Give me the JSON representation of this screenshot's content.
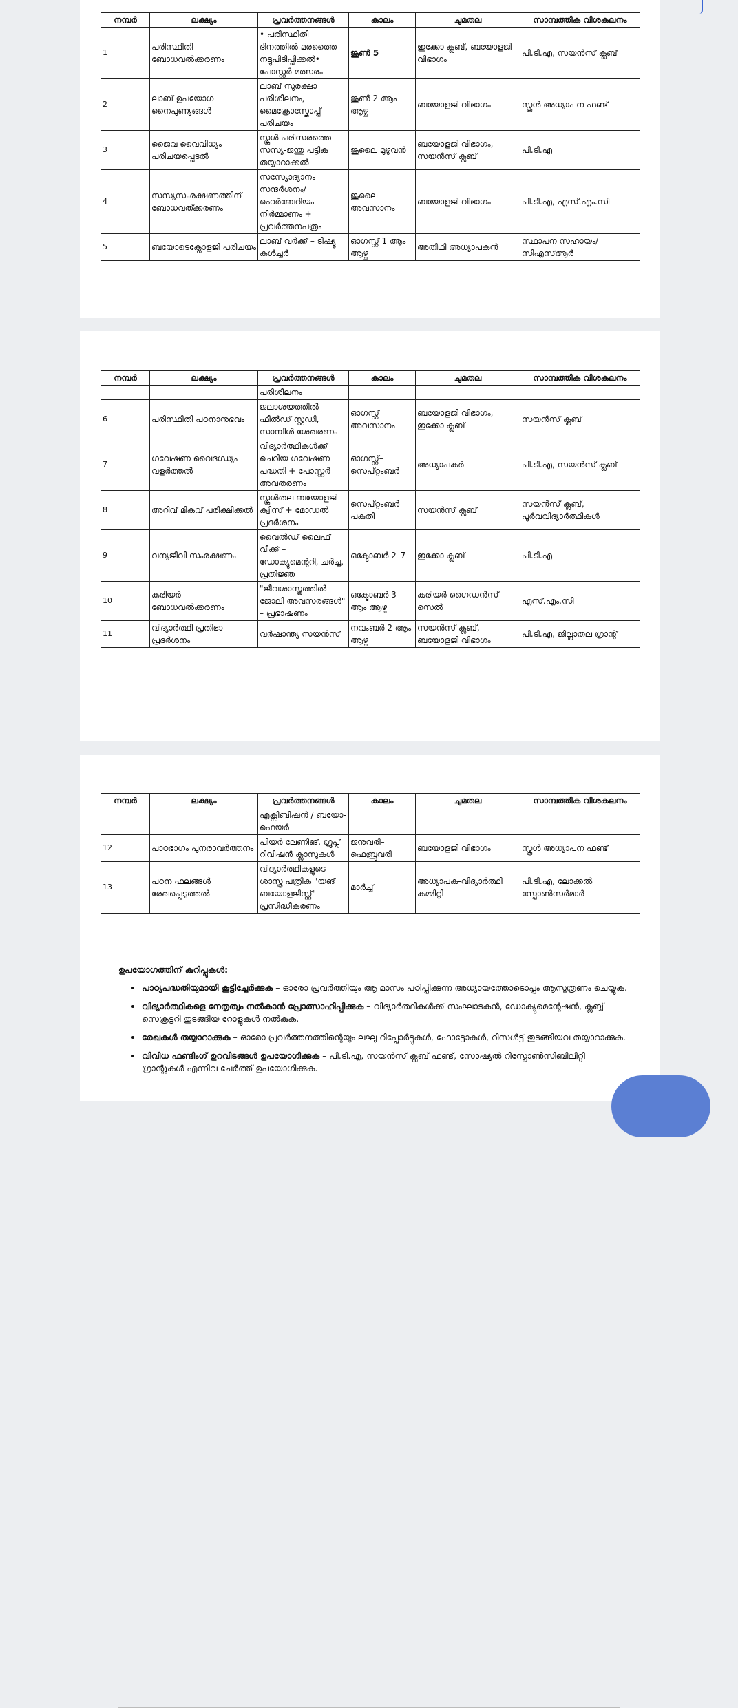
{
  "pages": [
    {
      "table": {
        "header": [
          "നമ്പർ",
          "ലക്ഷ്യം",
          "പ്രവർത്തനങ്ങൾ",
          "കാലം",
          "ചുമതല",
          "സാമ്പത്തിക വിശകലനം"
        ],
        "rows": [
          [
            "1",
            "പരിസ്ഥിതി ബോധവൽക്കരണം",
            "• പരിസ്ഥിതി ദിനത്തിൽ മരത്തൈ നട്ടുപിടിപ്പിക്കൽ• പോസ്റ്റർ മത്സരം",
            "ജൂൺ 5",
            "ഇക്കോ ക്ലബ്, ബയോളജി വിഭാഗം",
            "പി.ടി.എ, സയൻസ് ക്ലബ്"
          ],
          [
            "2",
            "ലാബ് ഉപയോഗ നൈപുണ്യങ്ങൾ",
            "ലാബ് സുരക്ഷാ പരിശീലനം, മൈക്രോസ്കോപ്പ് പരിചയം",
            "ജൂൺ 2 ആം ആഴ്ച",
            "ബയോളജി വിഭാഗം",
            "സ്കൂൾ അധ്യാപന ഫണ്ട്"
          ],
          [
            "3",
            "ജൈവ വൈവിധ്യം പരിചയപ്പെടൽ",
            "സ്കൂൾ പരിസരത്തെ സസ്യ-ജന്തു പട്ടിക തയ്യാറാക്കൽ",
            "ജൂലൈ മുഴുവൻ",
            "ബയോളജി വിഭാഗം, സയൻസ് ക്ലബ്",
            "പി.ടി.എ"
          ],
          [
            "4",
            "സസ്യസംരക്ഷണത്തിന് ബോധവത്ക്കരണം",
            "സസ്യോദ്യാനം സന്ദർശനം/ ഹെർബേറിയം നിർമ്മാണം + പ്രവർത്തനപത്രം",
            "ജൂലൈ അവസാനം",
            "ബയോളജി വിഭാഗം",
            "പി.ടി.എ, എസ്.എം.സി"
          ],
          [
            "5",
            "ബയോടെക്നോളജി പരിചയം",
            "ലാബ് വർക്ക് – ടിഷ്യൂ കൾച്ചർ",
            "ഓഗസ്റ്റ് 1 ആം ആഴ്ച",
            "അതിഥി അധ്യാപകൻ",
            "സ്ഥാപന സഹായം/സിഎസ്ആർ"
          ]
        ]
      }
    },
    {
      "table": {
        "header": [
          "നമ്പർ",
          "ലക്ഷ്യം",
          "പ്രവർത്തനങ്ങൾ",
          "കാലം",
          "ചുമതല",
          "സാമ്പത്തിക വിശകലനം"
        ],
        "rows": [
          [
            null,
            null,
            "പരിശീലനം",
            null,
            null,
            null
          ],
          [
            "6",
            "പരിസ്ഥിതി പഠനാനുഭവം",
            "ജലാശയത്തിൽ ഫീൽഡ് സ്റ്റഡി, സാമ്പിൾ ശേഖരണം",
            "ഓഗസ്റ്റ് അവസാനം",
            "ബയോളജി വിഭാഗം, ഇക്കോ ക്ലബ്",
            "സയൻസ് ക്ലബ്"
          ],
          [
            "7",
            "ഗവേഷണ വൈദഗ്ധ്യം വളർത്തൽ",
            "വിദ്യാർത്ഥികൾക്ക് ചെറിയ ഗവേഷണ പദ്ധതി + പോസ്റ്റർ അവതരണം",
            "ഓഗസ്റ്റ്–സെപ്റ്റംബർ",
            "അധ്യാപകർ",
            "പി.ടി.എ, സയൻസ് ക്ലബ്"
          ],
          [
            "8",
            "അറിവ് മികവ് പരീക്ഷിക്കൽ",
            "സ്കൂൾതല ബയോളജി ക്വിസ് + മോഡൽ പ്രദർശനം",
            "സെപ്റ്റംബർ പകുതി",
            "സയൻസ് ക്ലബ്",
            "സയൻസ് ക്ലബ്, പൂർവവിദ്യാർത്ഥികൾ"
          ],
          [
            "9",
            "വന്യജീവി സംരക്ഷണം",
            "വൈൽഡ് ലൈഫ് വീക്ക് – ഡോക്യുമെന്ററി, ചർച്ച, പ്രതിജ്ഞ",
            "ഒക്ടോബർ 2–7",
            "ഇക്കോ ക്ലബ്",
            "പി.ടി.എ"
          ],
          [
            "10",
            "കരിയർ ബോധവൽക്കരണം",
            "\"ജീവശാസ്ത്രത്തിൽ ജോലി അവസരങ്ങൾ\" – പ്രഭാഷണം",
            "ഒക്ടോബർ 3 ആം ആഴ്ച",
            "കരിയർ ഗൈഡൻസ് സെൽ",
            "എസ്.എം.സി"
          ],
          [
            "11",
            "വിദ്യാർത്ഥി പ്രതിഭാ പ്രദർശനം",
            "വർഷാന്ത്യ സയൻസ്",
            "നവംബർ 2 ആം ആഴ്ച",
            "സയൻസ് ക്ലബ്, ബയോളജി വിഭാഗം",
            "പി.ടി.എ, ജില്ലാതല ഗ്രാന്റ്"
          ]
        ]
      }
    },
    {
      "table": {
        "header": [
          "നമ്പർ",
          "ലക്ഷ്യം",
          "പ്രവർത്തനങ്ങൾ",
          "കാലം",
          "ചുമതല",
          "സാമ്പത്തിക വിശകലനം"
        ],
        "rows": [
          [
            null,
            null,
            "എക്സിബിഷൻ / ബയോ-ഫെയർ",
            null,
            null,
            null
          ],
          [
            "12",
            "പാഠഭാഗം പുനരാവർത്തനം",
            "പിയർ ലേണിങ്, ഗ്രൂപ്പ് റിവിഷൻ ക്ലാസുകൾ",
            "ജനുവരി–ഫെബ്രുവരി",
            "ബയോളജി വിഭാഗം",
            "സ്കൂൾ അധ്യാപന ഫണ്ട്"
          ],
          [
            "13",
            "പഠന ഫലങ്ങൾ രേഖപ്പെടുത്തൽ",
            "വിദ്യാർത്ഥികളുടെ ശാസ്ത്ര പത്രിക \"യങ് ബയോളജിസ്റ്റ്\" പ്രസിദ്ധീകരണം",
            "മാർച്ച്",
            "അധ്യാപക-വിദ്യാർത്ഥി കമ്മിറ്റി",
            "പി.ടി.എ, ലോക്കൽ സ്പോൺസർമാർ"
          ]
        ]
      },
      "notes": {
        "title": "ഉപയോഗത്തിന് കുറിപ്പുകൾ:",
        "items": [
          {
            "bold": "പാഠ്യപദ്ധതിയുമായി കൂട്ടിച്ചേർക്കുക",
            "text": "– ഓരോ പ്രവർത്തിയും ആ മാസം പഠിപ്പിക്കുന്ന അധ്യായത്തോടൊപ്പം ആസൂത്രണം ചെയ്യുക."
          },
          {
            "bold": "വിദ്യാർത്ഥികളെ നേതൃത്വം നൽകാൻ പ്രോത്സാഹിപ്പിക്കുക",
            "text": "– വിദ്യാർത്ഥികൾക്ക് സംഘാടകൻ, ഡോക്യുമെന്റേഷൻ, ക്ലബ്ബ് സെക്രട്ടറി തുടങ്ങിയ റോളുകൾ നൽകുക."
          },
          {
            "bold": "രേഖകൾ തയ്യാറാക്കുക",
            "text": "– ഓരോ പ്രവർത്തനത്തിന്റെയും ലഘു റിപ്പോർട്ടുകൾ, ഫോട്ടോകൾ, റിസൾട്ട് തുടങ്ങിയവ തയ്യാറാക്കുക."
          },
          {
            "bold": "വിവിധ ഫണ്ടിംഗ് ഉറവിടങ്ങൾ ഉപയോഗിക്കുക",
            "text": "– പി.ടി.എ, സയൻസ് ക്ലബ് ഫണ്ട്, സോഷ്യൽ റിസ്പോൺസിബിലിറ്റി ഗ്രാന്റുകൾ എന്നിവ ചേർത്ത് ഉപയോഗിക്കുക."
          }
        ]
      }
    }
  ]
}
